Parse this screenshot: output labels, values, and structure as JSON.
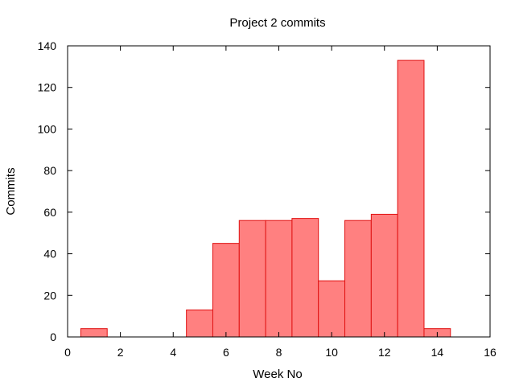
{
  "chart_data": {
    "type": "bar",
    "title": "Project 2 commits",
    "xlabel": "Week No",
    "ylabel": "Commits",
    "xlim": [
      0,
      16
    ],
    "ylim": [
      0,
      140
    ],
    "xticks": [
      0,
      2,
      4,
      6,
      8,
      10,
      12,
      14,
      16
    ],
    "yticks": [
      0,
      20,
      40,
      60,
      80,
      100,
      120,
      140
    ],
    "grid": false,
    "bar_width": 1,
    "x": [
      1,
      5,
      6,
      7,
      8,
      9,
      10,
      11,
      12,
      13,
      14
    ],
    "values": [
      4,
      13,
      45,
      56,
      56,
      57,
      27,
      56,
      59,
      133,
      4
    ],
    "colors": {
      "bar_fill": "#ff8080",
      "bar_stroke": "#e01010",
      "axis": "#000000"
    }
  }
}
